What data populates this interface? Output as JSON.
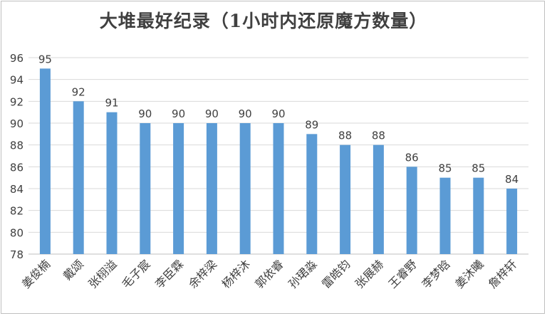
{
  "chart_data": {
    "type": "bar",
    "title": "大堆最好纪录（1小时内还原魔方数量）",
    "categories": [
      "姜俊楠",
      "戴颂",
      "张栩溢",
      "毛子宸",
      "李臣霖",
      "余梓梁",
      "杨梓沐",
      "郭依睿",
      "孙珺淼",
      "雷皓钧",
      "张展赫",
      "王睿野",
      "李梦晗",
      "姜沐曦",
      "詹梓轩"
    ],
    "values": [
      95,
      92,
      91,
      90,
      90,
      90,
      90,
      90,
      89,
      88,
      88,
      86,
      85,
      85,
      84
    ],
    "ylim": [
      78,
      96
    ],
    "yticks": [
      78,
      80,
      82,
      84,
      86,
      88,
      90,
      92,
      94,
      96
    ],
    "grid": true,
    "data_labels": true,
    "bar_color": "#5b9bd5"
  }
}
